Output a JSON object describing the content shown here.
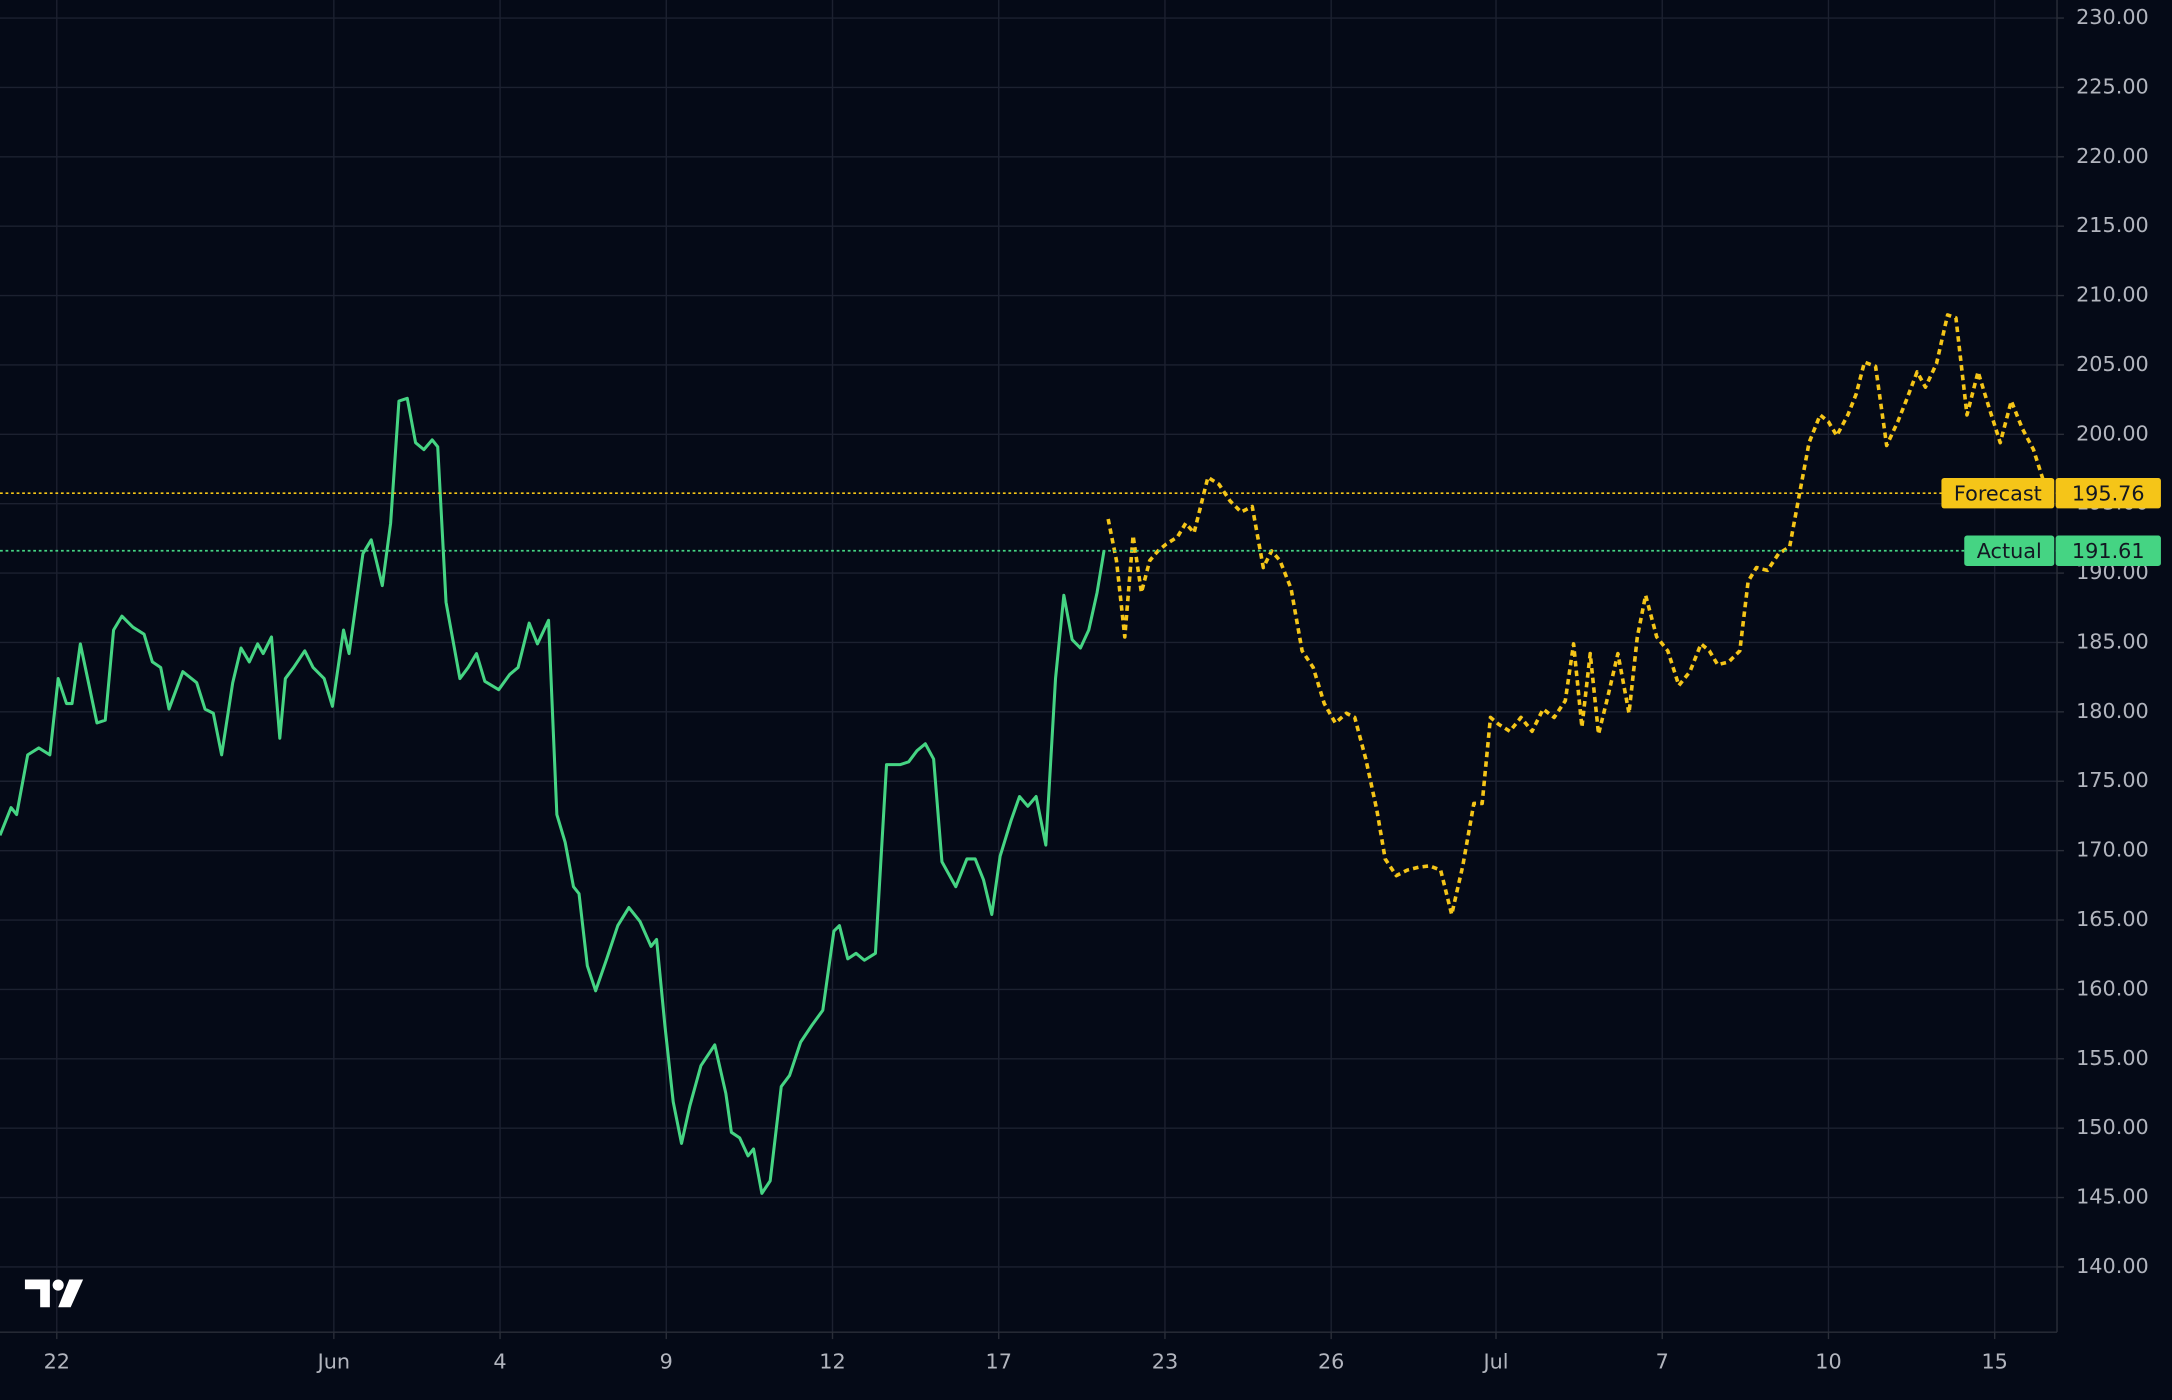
{
  "chart_data": {
    "type": "line",
    "xlim": [
      0,
      371.25
    ],
    "xticks": [
      {
        "value": 10.25,
        "label": "22"
      },
      {
        "value": 60.25,
        "label": "Jun"
      },
      {
        "value": 90.25,
        "label": "4"
      },
      {
        "value": 120.25,
        "label": "9"
      },
      {
        "value": 150.25,
        "label": "12"
      },
      {
        "value": 180.25,
        "label": "17"
      },
      {
        "value": 210.25,
        "label": "23"
      },
      {
        "value": 240.25,
        "label": "26"
      },
      {
        "value": 270,
        "label": "Jul"
      },
      {
        "value": 300,
        "label": "7"
      },
      {
        "value": 330,
        "label": "10"
      },
      {
        "value": 360,
        "label": "15"
      }
    ],
    "ylim": [
      135.3,
      231.3
    ],
    "yticks": [
      {
        "value": 140,
        "label": "140.00"
      },
      {
        "value": 145,
        "label": "145.00"
      },
      {
        "value": 150,
        "label": "150.00"
      },
      {
        "value": 155,
        "label": "155.00"
      },
      {
        "value": 160,
        "label": "160.00"
      },
      {
        "value": 165,
        "label": "165.00"
      },
      {
        "value": 170,
        "label": "170.00"
      },
      {
        "value": 175,
        "label": "175.00"
      },
      {
        "value": 180,
        "label": "180.00"
      },
      {
        "value": 185,
        "label": "185.00"
      },
      {
        "value": 190,
        "label": "190.00"
      },
      {
        "value": 195,
        "label": "195.00"
      },
      {
        "value": 200,
        "label": "200.00"
      },
      {
        "value": 205,
        "label": "205.00"
      },
      {
        "value": 210,
        "label": "210.00"
      },
      {
        "value": 215,
        "label": "215.00"
      },
      {
        "value": 220,
        "label": "220.00"
      },
      {
        "value": 225,
        "label": "225.00"
      },
      {
        "value": 230,
        "label": "230.00"
      }
    ],
    "grid": true,
    "series": [
      {
        "name": "Actual",
        "color": "#45d483",
        "line_style": "solid",
        "x": [
          0,
          2,
          3,
          5,
          7,
          9,
          10.5,
          12,
          13,
          14.5,
          17.5,
          19,
          20.5,
          22,
          24,
          26,
          27.5,
          29,
          30.5,
          33,
          35.5,
          37,
          38.5,
          40,
          42,
          43.5,
          45,
          46.5,
          47.5,
          49,
          50.5,
          51.5,
          53,
          55,
          56.5,
          58.5,
          60,
          62,
          63,
          65.5,
          67,
          69,
          70.5,
          72,
          73.5,
          75,
          76.5,
          78,
          79,
          80.5,
          83,
          84.5,
          86,
          87.5,
          90,
          92,
          93.5,
          95.5,
          97,
          99,
          100.5,
          102,
          103.5,
          104.5,
          106,
          107.5,
          109.5,
          111.5,
          113.5,
          115.5,
          117.5,
          118.5,
          120,
          121.5,
          123,
          124.5,
          126.5,
          129,
          131,
          132,
          133.5,
          135,
          136,
          137.5,
          139,
          141,
          142.5,
          144.5,
          146.5,
          148.5,
          150.5,
          151.5,
          153,
          154.5,
          156,
          158,
          160,
          162.5,
          164,
          165.5,
          167,
          168.5,
          170,
          172.5,
          174.5,
          176,
          177.5,
          179,
          180.5,
          182.5,
          184,
          185.5,
          187,
          188.75,
          190.5,
          192,
          193.5,
          195,
          196.5,
          198,
          199.25
        ],
        "values": [
          171.1,
          173.1,
          172.6,
          176.9,
          177.4,
          176.9,
          182.4,
          180.6,
          180.6,
          184.9,
          179.2,
          179.4,
          185.9,
          186.9,
          186.1,
          185.6,
          183.6,
          183.2,
          180.2,
          182.9,
          182.1,
          180.2,
          179.9,
          176.9,
          182.1,
          184.6,
          183.6,
          184.9,
          184.2,
          185.4,
          178.1,
          182.4,
          183.2,
          184.4,
          183.2,
          182.4,
          180.4,
          185.9,
          184.2,
          191.4,
          192.4,
          189.1,
          193.6,
          202.4,
          202.6,
          199.4,
          198.9,
          199.6,
          199.1,
          187.9,
          182.4,
          183.2,
          184.2,
          182.2,
          181.6,
          182.7,
          183.2,
          186.4,
          184.9,
          186.6,
          172.6,
          170.6,
          167.4,
          166.9,
          161.7,
          159.9,
          162.2,
          164.6,
          165.9,
          164.9,
          163.1,
          163.6,
          157.4,
          151.9,
          148.9,
          151.6,
          154.5,
          156.0,
          152.5,
          149.7,
          149.3,
          148.0,
          148.5,
          145.3,
          146.2,
          153.0,
          153.8,
          156.2,
          157.4,
          158.5,
          164.2,
          164.6,
          162.2,
          162.6,
          162.1,
          162.6,
          176.2,
          176.2,
          176.4,
          177.2,
          177.7,
          176.6,
          169.2,
          167.4,
          169.4,
          169.4,
          167.9,
          165.4,
          169.6,
          172.2,
          173.9,
          173.2,
          173.9,
          170.4,
          182.4,
          188.4,
          185.2,
          184.6,
          185.9,
          188.6,
          191.61
        ]
      },
      {
        "name": "Forecast",
        "color": "#f5c518",
        "line_style": "dashed",
        "x": [
          200,
          201.5,
          203,
          204.5,
          206,
          207.5,
          209,
          210.5,
          212.5,
          214,
          215.5,
          218,
          220,
          222,
          224,
          226,
          228,
          229.5,
          231,
          233,
          235,
          237,
          239,
          241,
          243,
          244.5,
          246.5,
          248.5,
          250,
          252,
          254,
          256,
          258,
          260,
          262,
          264,
          266,
          267.5,
          269,
          270.5,
          272.5,
          274.5,
          276.5,
          278.5,
          280.5,
          282.5,
          284,
          285.5,
          287,
          288.5,
          290,
          292,
          294,
          295.5,
          297,
          299,
          301,
          303,
          305,
          307,
          308.5,
          310,
          312,
          314,
          315.5,
          317,
          319,
          321,
          323,
          325,
          326.5,
          328.5,
          330,
          331.5,
          333.5,
          335,
          336.5,
          338.5,
          340.5,
          342.5,
          344,
          346,
          347.5,
          349.5,
          351.5,
          353,
          355,
          357,
          359,
          361,
          363,
          365,
          367,
          369.5
        ],
        "values": [
          193.9,
          190.9,
          185.4,
          192.7,
          188.6,
          190.9,
          191.6,
          192.1,
          192.6,
          193.6,
          192.9,
          196.9,
          196.4,
          195.2,
          194.4,
          194.8,
          190.4,
          191.6,
          190.9,
          188.9,
          184.4,
          183.2,
          180.6,
          179.2,
          179.9,
          179.6,
          176.6,
          172.9,
          169.4,
          168.2,
          168.6,
          168.8,
          168.9,
          168.6,
          165.4,
          168.9,
          173.4,
          173.4,
          179.6,
          179.1,
          178.6,
          179.6,
          178.6,
          180.2,
          179.6,
          180.8,
          184.9,
          178.9,
          184.2,
          178.4,
          180.8,
          184.2,
          179.9,
          185.4,
          188.4,
          185.4,
          184.4,
          181.9,
          182.9,
          184.9,
          184.4,
          183.4,
          183.6,
          184.4,
          189.4,
          190.4,
          190.2,
          191.4,
          191.9,
          196.2,
          199.4,
          201.4,
          200.9,
          199.9,
          201.4,
          202.9,
          205.2,
          204.9,
          199.2,
          200.9,
          202.4,
          204.5,
          203.4,
          205.1,
          208.6,
          208.4,
          201.4,
          204.5,
          201.9,
          199.4,
          202.4,
          200.4,
          198.9,
          195.76
        ]
      }
    ]
  }
}
